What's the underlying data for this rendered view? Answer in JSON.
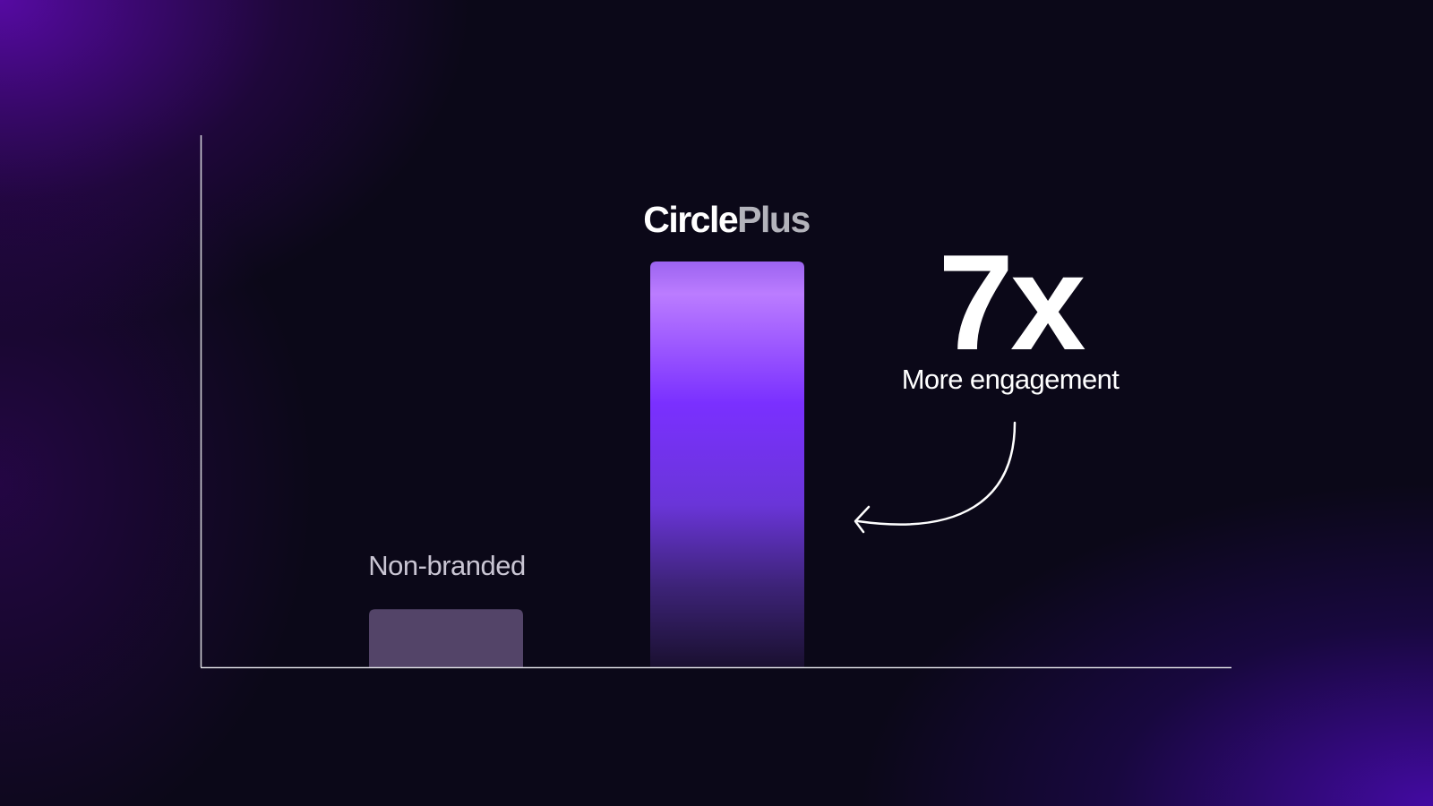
{
  "chart_data": {
    "type": "bar",
    "categories": [
      "Non-branded",
      "CirclePlus"
    ],
    "values": [
      1,
      7
    ],
    "xlabel": "",
    "ylabel": "",
    "grid": false,
    "colors": [
      "#534468",
      "#7a35f5"
    ]
  },
  "logo": {
    "part1": "Circle",
    "part2": "Plus"
  },
  "callout": {
    "value": "7x",
    "label": "More engagement"
  }
}
